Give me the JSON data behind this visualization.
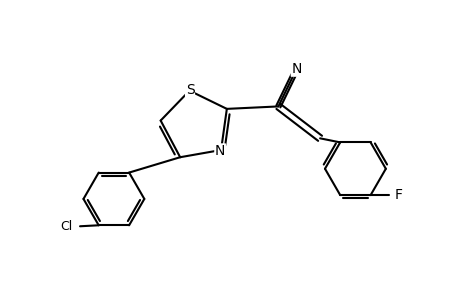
{
  "bg_color": "#ffffff",
  "line_color": "#000000",
  "line_width": 1.5,
  "fig_width": 4.6,
  "fig_height": 3.0,
  "dpi": 100,
  "label_S": "S",
  "label_N_thiazole": "N",
  "label_N_nitrile": "N",
  "label_Cl": "Cl",
  "label_F": "F",
  "font_size_heteroatom": 10,
  "font_size_label": 9
}
